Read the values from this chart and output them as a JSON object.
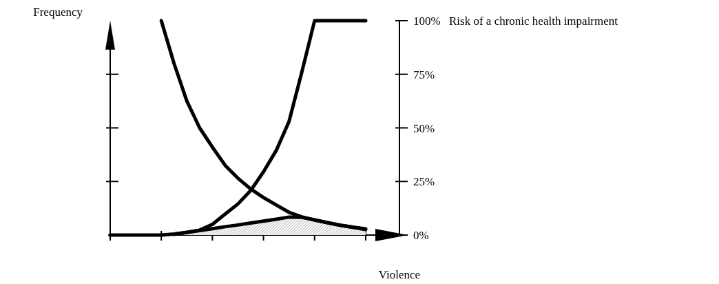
{
  "chart_data": {
    "type": "line",
    "ylabel": "Risk of a chronic health impairment",
    "xlabel": "Violence",
    "annotations": [
      "Frequency"
    ],
    "categories": [
      null,
      null,
      null,
      null,
      null,
      null,
      null,
      null,
      null,
      null,
      null,
      null,
      null,
      null,
      null,
      null,
      null,
      null,
      null,
      null,
      null
    ],
    "ylim": [
      0,
      100
    ],
    "yticks": [
      {
        "value": 0,
        "label": "0%"
      },
      {
        "value": 25,
        "label": "25%"
      },
      {
        "value": 50,
        "label": "50%"
      },
      {
        "value": 75,
        "label": "75%"
      },
      {
        "value": 100,
        "label": "100%"
      }
    ],
    "marker": "none",
    "line_style": "solid",
    "grid": false,
    "series": [
      {
        "color": "#000000",
        "values": [
          null,
          null,
          null,
          null,
          null,
          0.3,
          1.2,
          2.1,
          3,
          3.9,
          4.7,
          5.6,
          6.5,
          7.4,
          8.4,
          8.3,
          7.1,
          5.8,
          4.6,
          3.6,
          2.6
        ],
        "lower": [
          null,
          null,
          null,
          null,
          null,
          0,
          0,
          0,
          0,
          0,
          0,
          0,
          0,
          0,
          0,
          0,
          0,
          0,
          0,
          0,
          0
        ],
        "upper": [
          null,
          null,
          null,
          null,
          null,
          0.3,
          1.2,
          2.1,
          3,
          3.9,
          4.7,
          5.6,
          6.5,
          7.4,
          8.4,
          8.3,
          7.1,
          5.8,
          4.6,
          3.6,
          2.6
        ]
      },
      {
        "color": "#000000",
        "values": [
          null,
          null,
          null,
          null,
          100,
          80,
          62.5,
          50,
          41,
          32.5,
          26.5,
          21.5,
          17.5,
          14,
          10.6,
          8.5,
          7,
          5.8,
          4.6,
          3.7,
          2.9
        ]
      },
      {
        "color": "#000000",
        "values": [
          0,
          0,
          0,
          0,
          0,
          0.5,
          1.3,
          2.3,
          5,
          9.8,
          14.5,
          20.8,
          29.5,
          39.5,
          53,
          76,
          100,
          100,
          100,
          100,
          100
        ]
      }
    ]
  }
}
